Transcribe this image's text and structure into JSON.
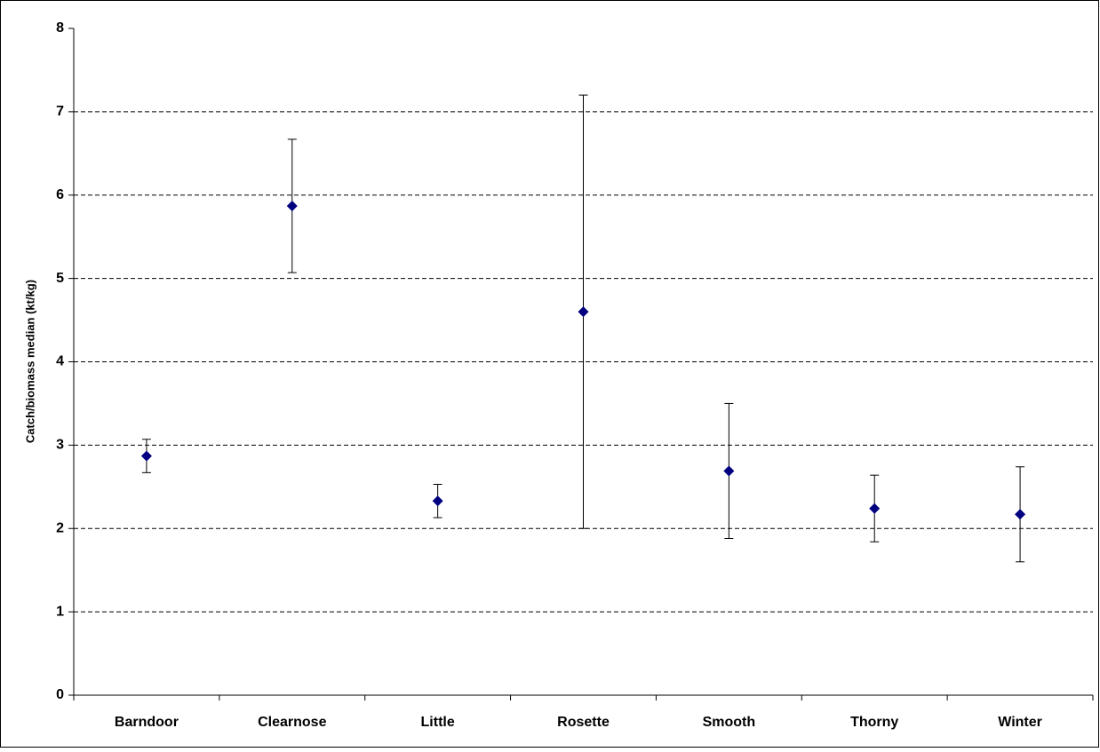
{
  "chart_data": {
    "type": "scatter",
    "y_label": "Catch/biomass median (kt/kg)",
    "categories": [
      "Barndoor",
      "Clearnose",
      "Little",
      "Rosette",
      "Smooth",
      "Thorny",
      "Winter"
    ],
    "values": [
      2.87,
      5.87,
      2.33,
      4.6,
      2.69,
      2.24,
      2.17
    ],
    "errors": [
      0.2,
      0.8,
      0.2,
      2.6,
      0.81,
      0.4,
      0.57
    ],
    "color": "#000080",
    "ylim": [
      0,
      8
    ],
    "yticks": [
      0,
      1,
      2,
      3,
      4,
      5,
      6,
      7,
      8
    ],
    "grid": true
  }
}
